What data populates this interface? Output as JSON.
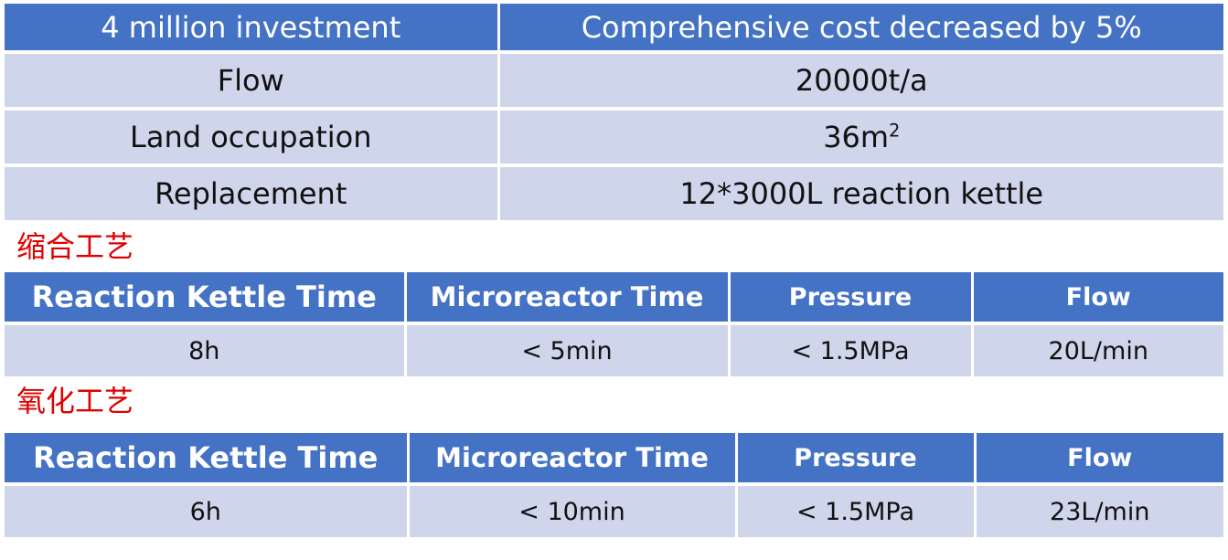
{
  "summary_table": {
    "header": [
      "4 million investment",
      "Comprehensive cost decreased by 5%"
    ],
    "rows": [
      {
        "label": "Flow",
        "value": "20000t/a"
      },
      {
        "label": "Land occupation",
        "value": "36m",
        "value_sup": "2"
      },
      {
        "label": "Replacement",
        "value": "12*3000L reaction kettle"
      }
    ]
  },
  "condensation": {
    "label": "缩合工艺",
    "headers": [
      "Reaction Kettle Time",
      "Microreactor Time",
      "Pressure",
      "Flow"
    ],
    "values": [
      "8h",
      "< 5min",
      "< 1.5MPa",
      "20L/min"
    ]
  },
  "oxidation": {
    "label": "氧化工艺",
    "headers": [
      "Reaction Kettle Time",
      "Microreactor Time",
      "Pressure",
      "Flow"
    ],
    "values": [
      "6h",
      "< 10min",
      "< 1.5MPa",
      "23L/min"
    ]
  },
  "colors": {
    "header_bg": "#4472c4",
    "cell_bg": "#cfd5ea",
    "label_red": "#e00000"
  }
}
